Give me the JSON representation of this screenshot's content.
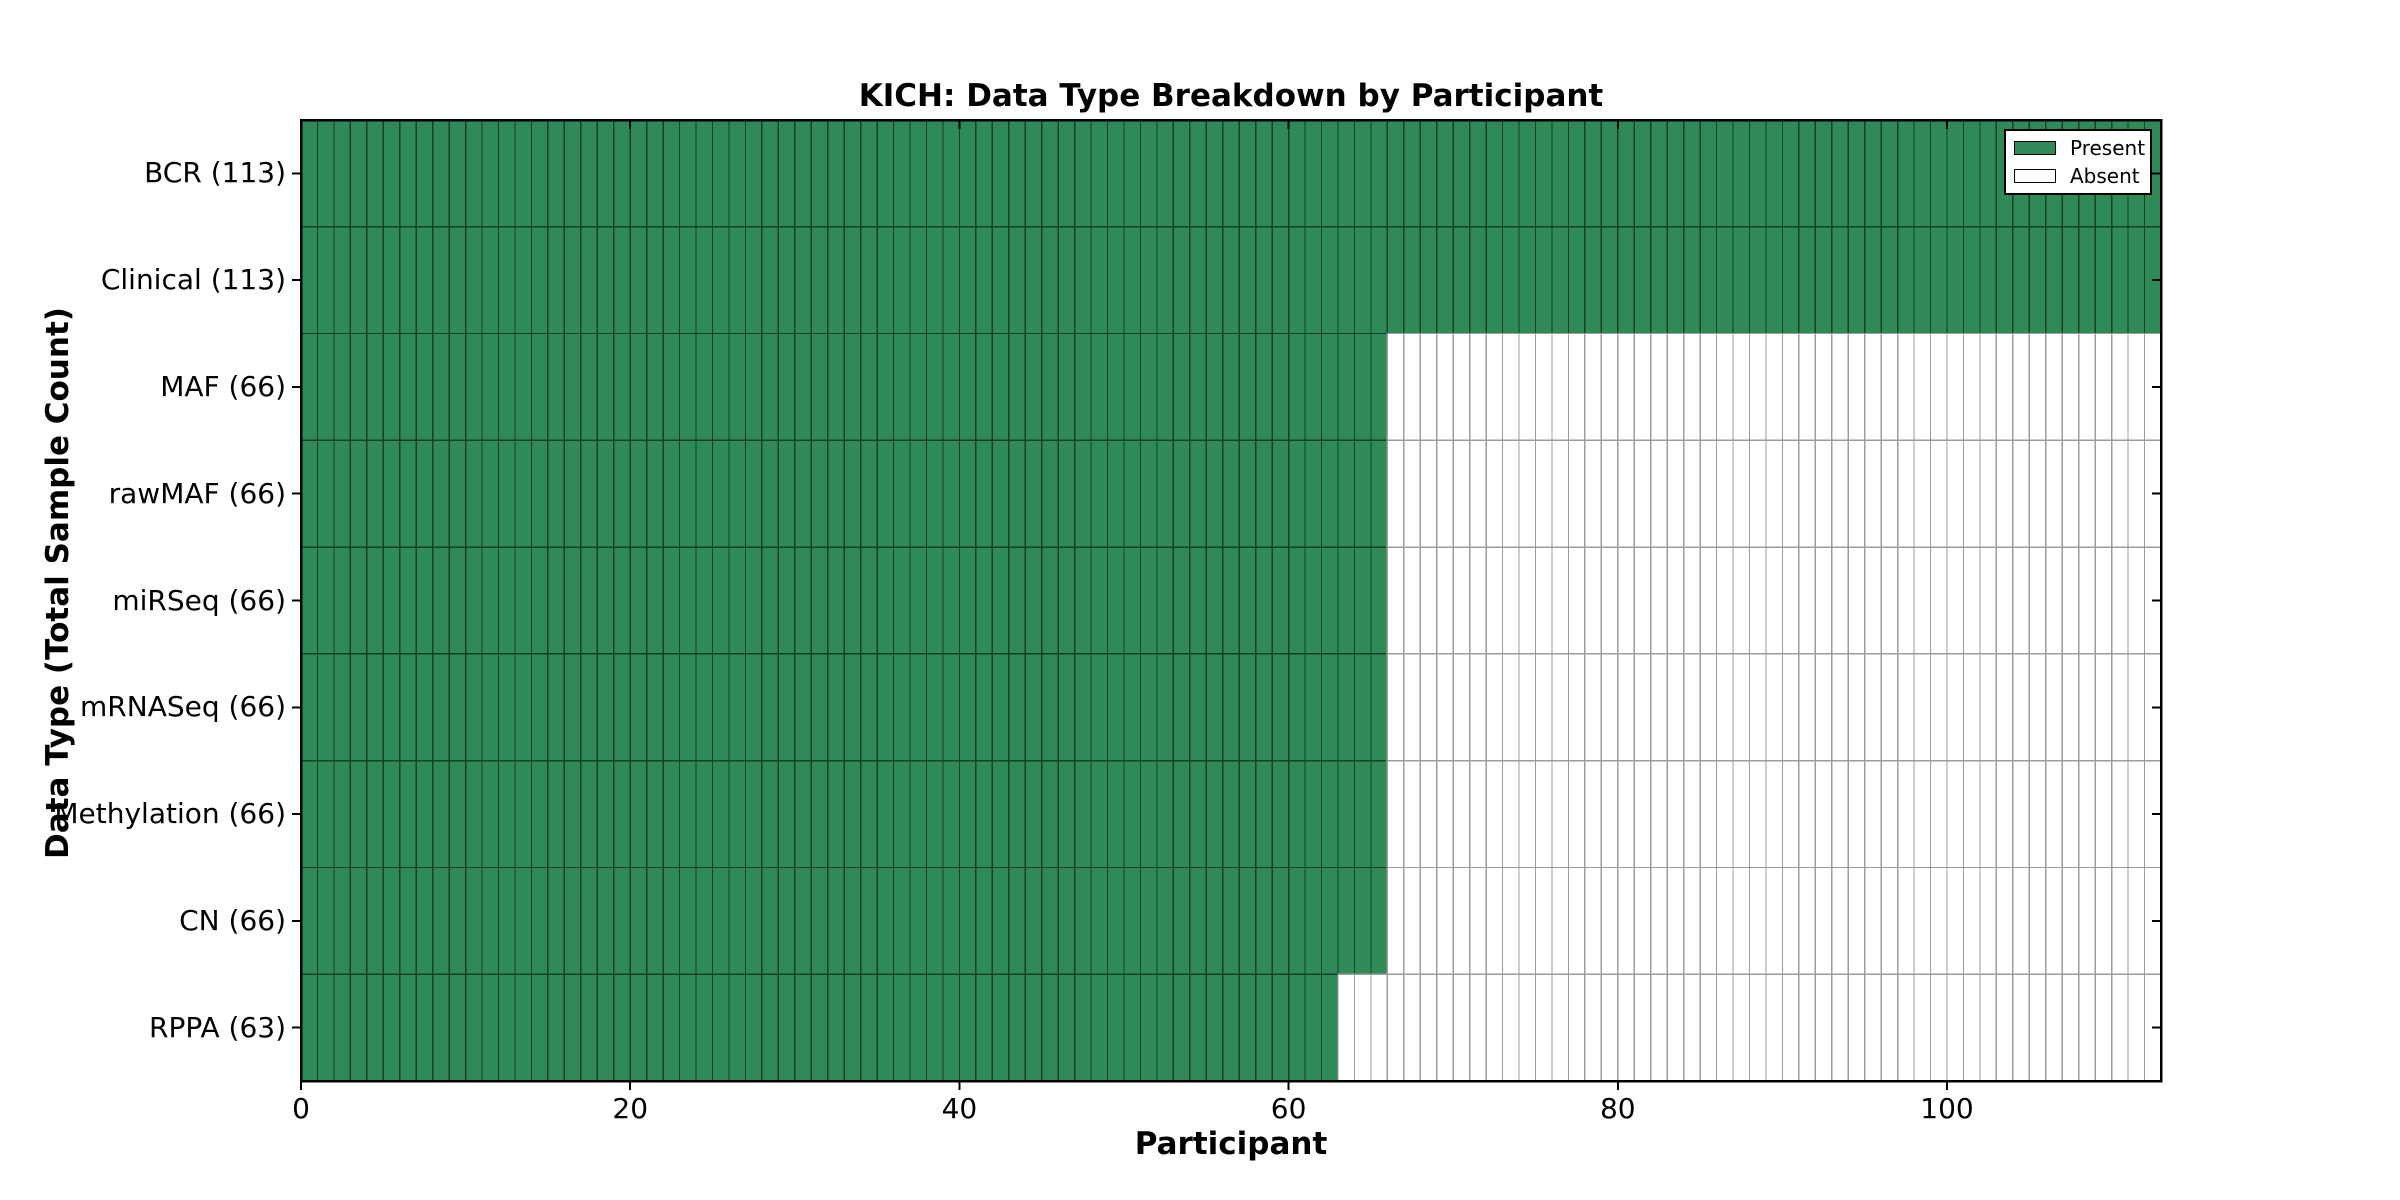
{
  "figure": {
    "title": "KICH: Data Type Breakdown by Participant",
    "xlabel": "Participant",
    "ylabel": "Data Type (Total Sample Count)"
  },
  "legend": {
    "items": [
      {
        "label": "Present",
        "color": "#2f8a58"
      },
      {
        "label": "Absent",
        "color": "#ffffff"
      }
    ]
  },
  "chart_data": {
    "type": "heatmap",
    "title": "KICH: Data Type Breakdown by Participant",
    "xlabel": "Participant",
    "ylabel": "Data Type (Total Sample Count)",
    "x_min": 0,
    "x_max": 113,
    "x_ticks": [
      0,
      20,
      40,
      60,
      80,
      100
    ],
    "total_participants": 113,
    "categories": [
      "BCR (113)",
      "Clinical (113)",
      "MAF (66)",
      "rawMAF (66)",
      "miRSeq (66)",
      "mRNASeq (66)",
      "Methylation (66)",
      "CN (66)",
      "RPPA (63)"
    ],
    "series": [
      {
        "name": "present_count",
        "values": [
          113,
          113,
          66,
          66,
          66,
          66,
          66,
          66,
          63
        ]
      }
    ],
    "cell_rule": "for each row, participants 0..present_count-1 are Present (green), the rest up to 113 are Absent (white)",
    "legend_entries": [
      "Present",
      "Absent"
    ],
    "legend_position": "upper right",
    "grid": "per-participant cell borders",
    "colors": {
      "present": "#2f8a58",
      "absent": "#ffffff",
      "present_edge": "#16402a",
      "absent_edge": "#9c9c9c",
      "axis": "#000000"
    }
  }
}
